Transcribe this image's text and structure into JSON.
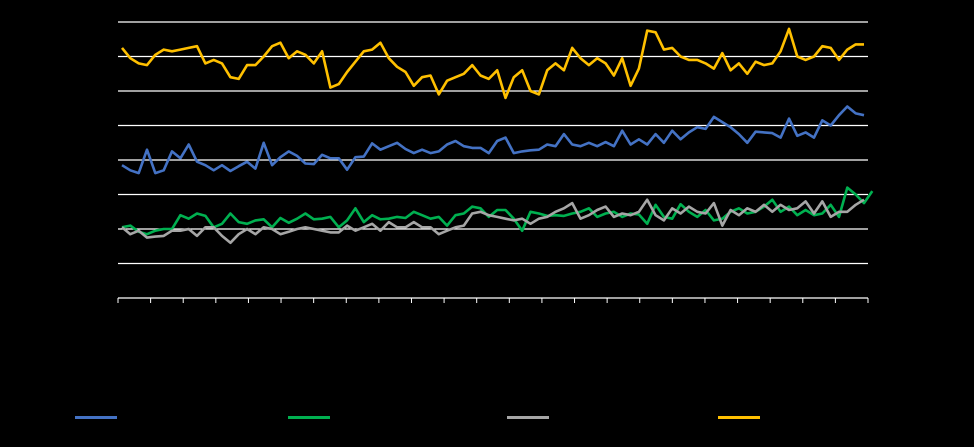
{
  "chart_data": {
    "type": "line",
    "title": "",
    "xlabel": "",
    "ylabel": "",
    "ylim": [
      0,
      8
    ],
    "grid": true,
    "legend_position": "bottom",
    "series": [
      {
        "name": "",
        "color": "#4472C4",
        "values": [
          3.85,
          3.7,
          3.62,
          4.3,
          3.62,
          3.7,
          4.25,
          4.05,
          4.45,
          3.95,
          3.85,
          3.7,
          3.85,
          3.68,
          3.82,
          3.95,
          3.75,
          4.5,
          3.85,
          4.08,
          4.25,
          4.12,
          3.9,
          3.88,
          4.15,
          4.05,
          4.05,
          3.72,
          4.08,
          4.1,
          4.48,
          4.3,
          4.4,
          4.5,
          4.32,
          4.2,
          4.3,
          4.2,
          4.25,
          4.45,
          4.55,
          4.4,
          4.35,
          4.35,
          4.2,
          4.55,
          4.65,
          4.2,
          4.25,
          4.28,
          4.3,
          4.45,
          4.4,
          4.75,
          4.45,
          4.4,
          4.5,
          4.4,
          4.52,
          4.4,
          4.85,
          4.45,
          4.6,
          4.45,
          4.75,
          4.5,
          4.85,
          4.6,
          4.8,
          4.95,
          4.9,
          5.25,
          5.1,
          4.95,
          4.75,
          4.5,
          4.82,
          4.8,
          4.78,
          4.65,
          5.2,
          4.7,
          4.8,
          4.65,
          5.15,
          5.0,
          5.3,
          5.55,
          5.35,
          5.3
        ]
      },
      {
        "name": "",
        "color": "#00B050",
        "values": [
          2.05,
          2.1,
          1.92,
          1.85,
          1.95,
          2.0,
          2.0,
          2.4,
          2.3,
          2.45,
          2.38,
          2.05,
          2.15,
          2.45,
          2.2,
          2.15,
          2.25,
          2.28,
          2.05,
          2.32,
          2.18,
          2.3,
          2.45,
          2.28,
          2.3,
          2.35,
          2.05,
          2.25,
          2.6,
          2.2,
          2.4,
          2.28,
          2.3,
          2.35,
          2.32,
          2.5,
          2.4,
          2.3,
          2.35,
          2.1,
          2.4,
          2.45,
          2.65,
          2.6,
          2.35,
          2.55,
          2.55,
          2.3,
          1.95,
          2.5,
          2.45,
          2.38,
          2.4,
          2.38,
          2.45,
          2.5,
          2.6,
          2.35,
          2.45,
          2.5,
          2.35,
          2.45,
          2.42,
          2.15,
          2.7,
          2.35,
          2.3,
          2.72,
          2.5,
          2.35,
          2.55,
          2.25,
          2.3,
          2.5,
          2.6,
          2.45,
          2.5,
          2.65,
          2.85,
          2.5,
          2.65,
          2.4,
          2.55,
          2.4,
          2.45,
          2.7,
          2.35,
          3.2,
          3.0,
          2.75,
          3.1
        ]
      },
      {
        "name": "",
        "color": "#A6A6A6",
        "values": [
          2.05,
          1.85,
          1.95,
          1.75,
          1.78,
          1.8,
          1.95,
          1.95,
          2.0,
          1.8,
          2.05,
          2.05,
          1.8,
          1.6,
          1.85,
          2.0,
          1.85,
          2.05,
          2.0,
          1.85,
          1.92,
          2.0,
          2.05,
          2.0,
          1.95,
          1.9,
          1.9,
          2.1,
          1.95,
          2.05,
          2.15,
          1.95,
          2.2,
          2.05,
          2.05,
          2.2,
          2.05,
          2.05,
          1.85,
          1.95,
          2.05,
          2.1,
          2.45,
          2.5,
          2.4,
          2.35,
          2.3,
          2.25,
          2.3,
          2.15,
          2.3,
          2.35,
          2.5,
          2.6,
          2.75,
          2.3,
          2.4,
          2.55,
          2.65,
          2.35,
          2.45,
          2.4,
          2.5,
          2.85,
          2.4,
          2.25,
          2.6,
          2.45,
          2.65,
          2.5,
          2.45,
          2.75,
          2.1,
          2.55,
          2.4,
          2.6,
          2.5,
          2.7,
          2.5,
          2.7,
          2.55,
          2.6,
          2.8,
          2.45,
          2.8,
          2.35,
          2.5,
          2.5,
          2.7,
          2.85
        ]
      },
      {
        "name": "",
        "color": "#FFC000",
        "values": [
          7.25,
          6.95,
          6.8,
          6.75,
          7.05,
          7.2,
          7.15,
          7.2,
          7.25,
          7.3,
          6.8,
          6.9,
          6.8,
          6.4,
          6.35,
          6.75,
          6.75,
          7.0,
          7.3,
          7.4,
          6.95,
          7.15,
          7.05,
          6.8,
          7.15,
          6.1,
          6.2,
          6.55,
          6.85,
          7.15,
          7.2,
          7.4,
          6.95,
          6.7,
          6.55,
          6.15,
          6.4,
          6.45,
          5.9,
          6.3,
          6.4,
          6.5,
          6.75,
          6.45,
          6.35,
          6.6,
          5.8,
          6.4,
          6.6,
          6.0,
          5.9,
          6.6,
          6.8,
          6.6,
          7.25,
          6.95,
          6.75,
          6.95,
          6.8,
          6.45,
          6.95,
          6.15,
          6.65,
          7.75,
          7.7,
          7.2,
          7.25,
          7.0,
          6.9,
          6.9,
          6.8,
          6.65,
          7.1,
          6.6,
          6.8,
          6.5,
          6.85,
          6.75,
          6.8,
          7.15,
          7.8,
          7.0,
          6.9,
          7.0,
          7.3,
          7.25,
          6.9,
          7.2,
          7.35,
          7.35
        ]
      }
    ]
  }
}
